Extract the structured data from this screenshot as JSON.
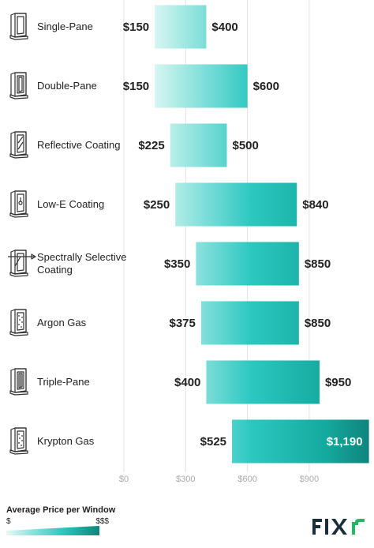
{
  "chart_data": {
    "type": "bar",
    "orientation": "horizontal",
    "range_bars": true,
    "categories": [
      "Single-Pane",
      "Double-Pane",
      "Reflective Coating",
      "Low-E Coating",
      "Spectrally Selective Coating",
      "Argon Gas",
      "Triple-Pane",
      "Krypton Gas"
    ],
    "icons": [
      "single-pane-window-icon",
      "double-pane-window-icon",
      "reflective-window-icon",
      "low-e-window-icon",
      "spectrally-selective-window-icon",
      "argon-gas-window-icon",
      "triple-pane-window-icon",
      "krypton-gas-window-icon"
    ],
    "low": [
      150,
      150,
      225,
      250,
      350,
      375,
      400,
      525
    ],
    "high": [
      400,
      600,
      500,
      840,
      850,
      850,
      950,
      1190
    ],
    "low_labels": [
      "$150",
      "$150",
      "$225",
      "$250",
      "$350",
      "$375",
      "$400",
      "$525"
    ],
    "high_labels": [
      "$400",
      "$600",
      "$500",
      "$840",
      "$850",
      "$850",
      "$950",
      "$1,190"
    ],
    "x_ticks": [
      0,
      300,
      600,
      900
    ],
    "x_tick_labels": [
      "$0",
      "$300",
      "$600",
      "$900"
    ],
    "xlim": [
      0,
      1190
    ],
    "grid": true,
    "colors": {
      "light": "#d6f5f2",
      "mid": "#22c4bd",
      "dark": "#0f8a7f"
    }
  },
  "legend": {
    "title": "Average Price per Window",
    "low": "$",
    "high": "$$$"
  },
  "brand": {
    "text": "FIXR",
    "color": "#1a2f3a",
    "accent": "#28b463"
  }
}
